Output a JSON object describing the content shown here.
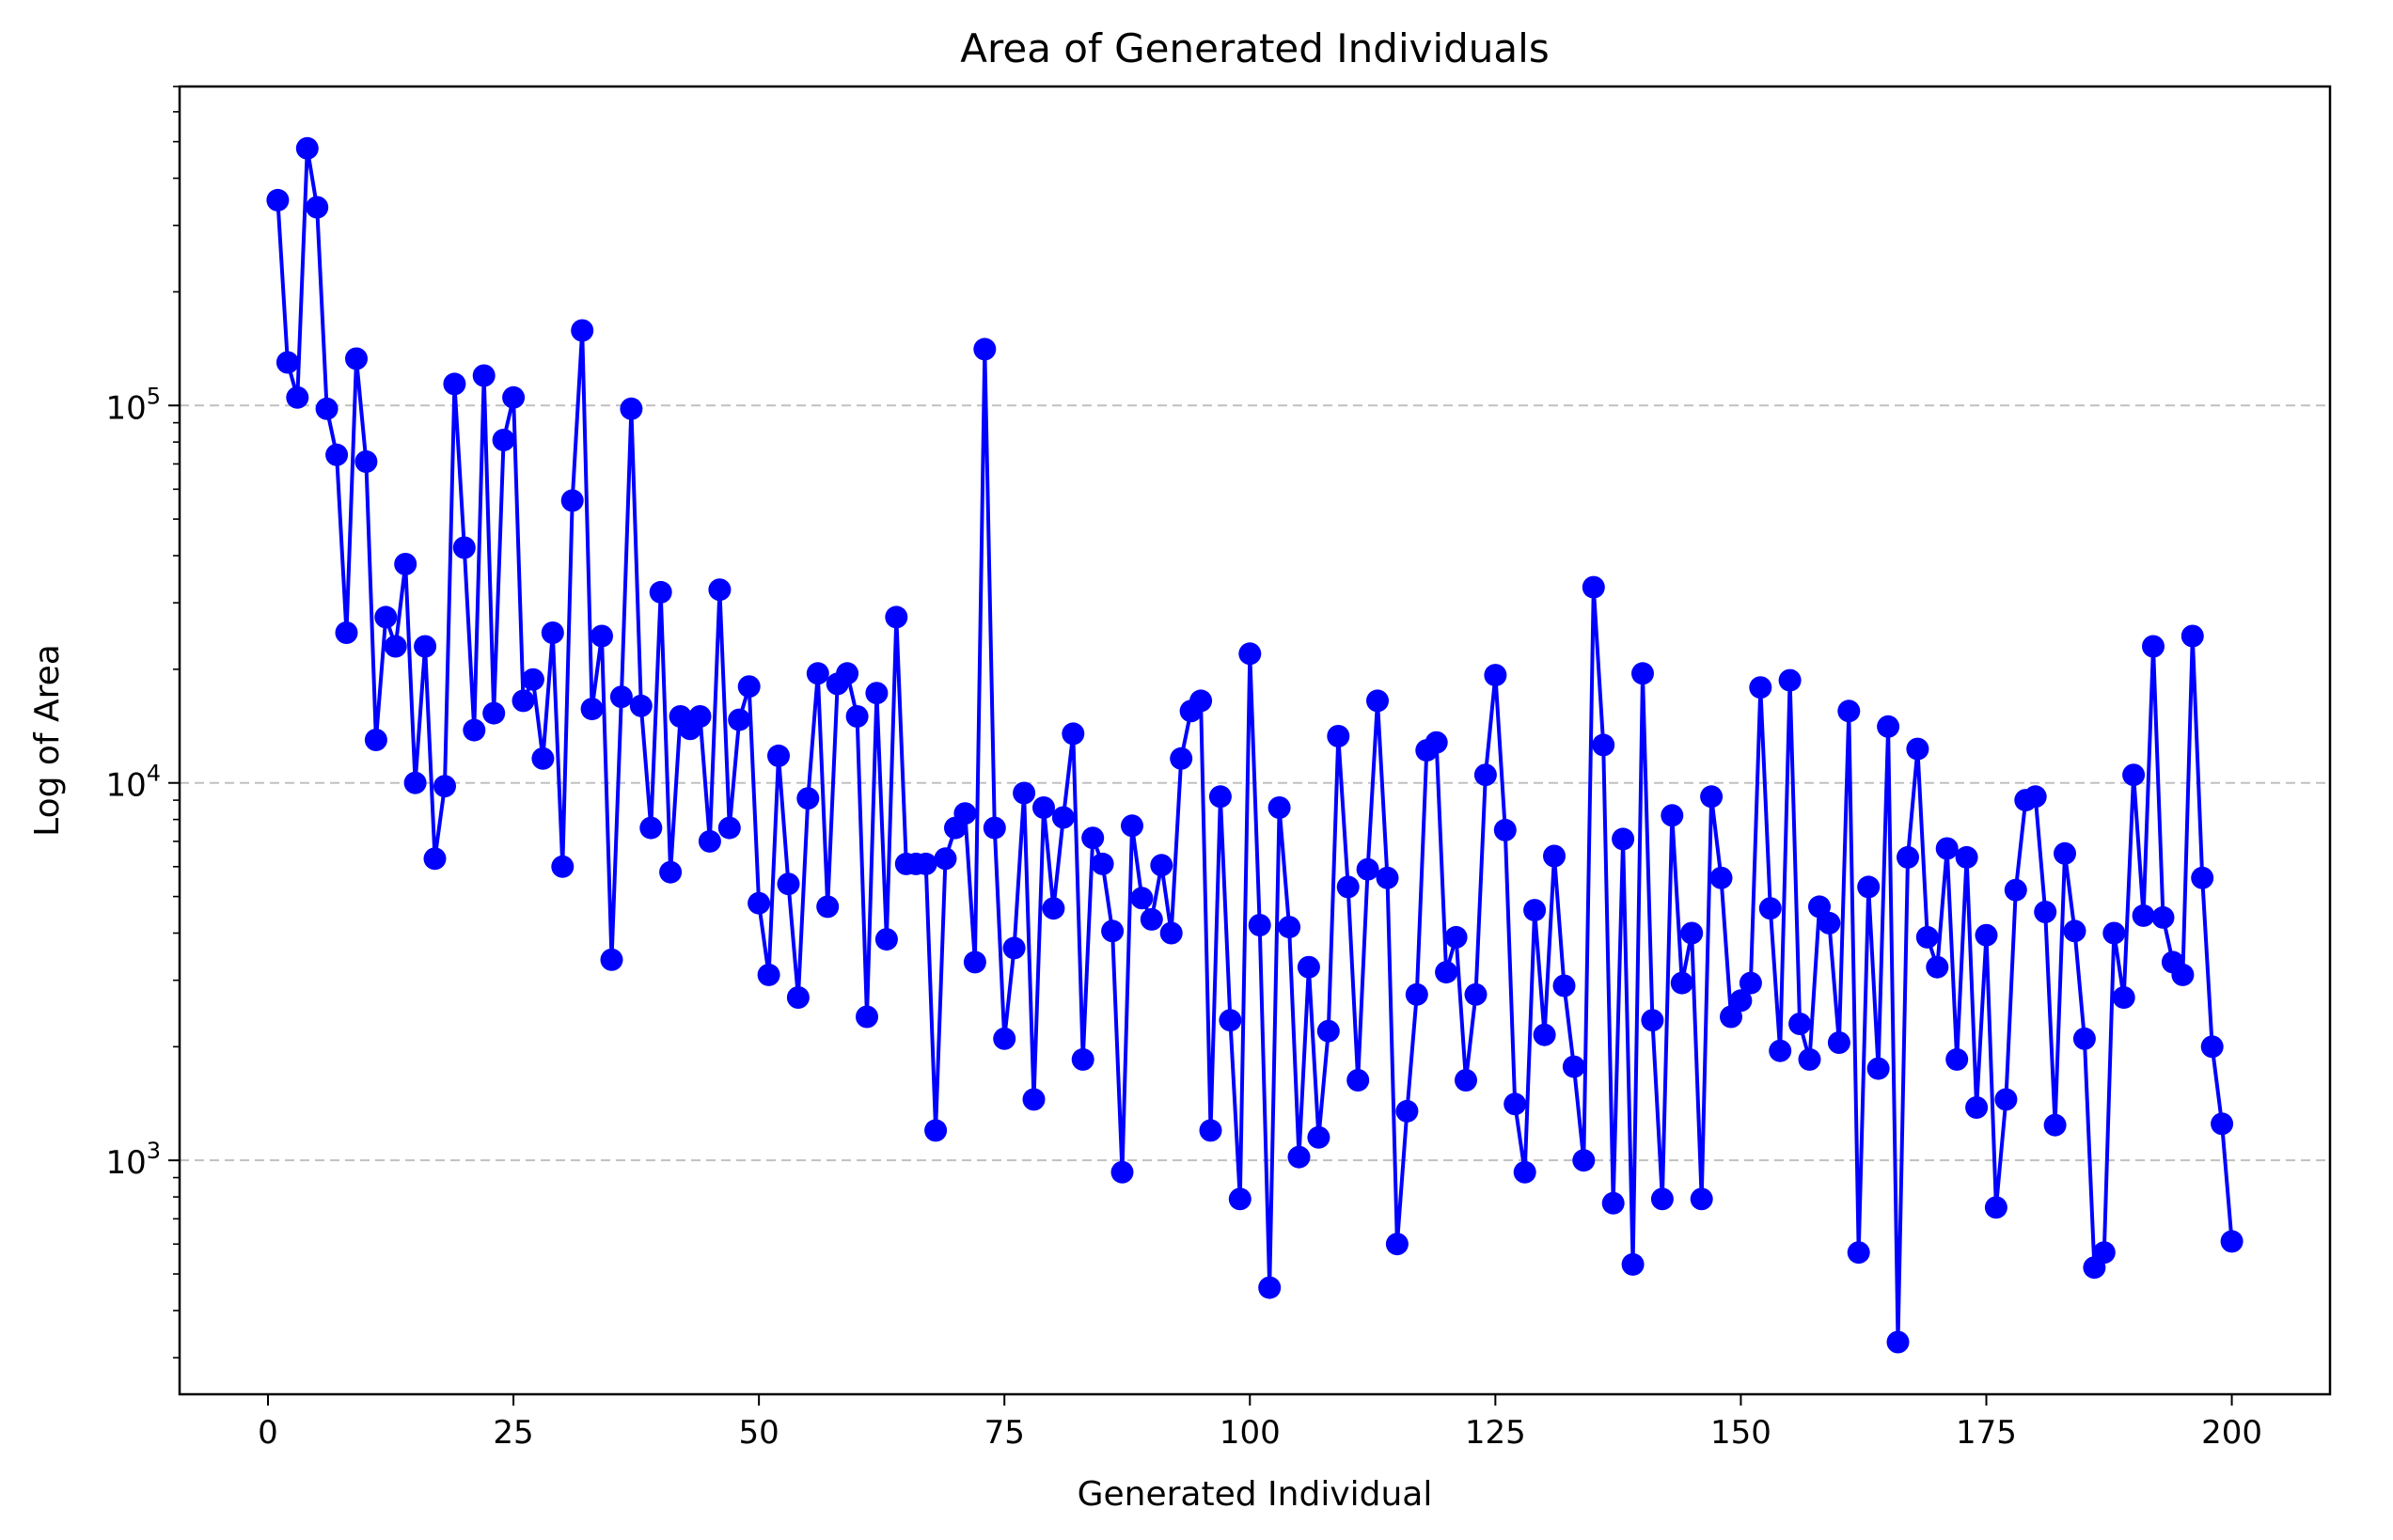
{
  "chart_data": {
    "type": "line",
    "title": "Area of Generated Individuals",
    "xlabel": "Generated Individual",
    "ylabel": "Log of Area",
    "yscale": "log",
    "grid": "y-major-dashed",
    "legend": "none",
    "color": "#0000ff",
    "marker": "circle",
    "xlim": [
      -9,
      210
    ],
    "ylim": [
      240,
      700000
    ],
    "xticks": [
      0,
      25,
      50,
      75,
      100,
      125,
      150,
      175,
      200
    ],
    "yticks": [
      {
        "value": 1000,
        "base": "10",
        "exp": "3"
      },
      {
        "value": 10000,
        "base": "10",
        "exp": "4"
      },
      {
        "value": 100000,
        "base": "10",
        "exp": "5"
      }
    ],
    "x_start": 1,
    "values": [
      350000,
      130000,
      105000,
      480000,
      335000,
      98000,
      74000,
      25000,
      133000,
      71000,
      13000,
      27500,
      23000,
      38000,
      10000,
      23000,
      6300,
      9800,
      114000,
      42000,
      13800,
      120000,
      15300,
      81000,
      105000,
      16500,
      18800,
      11600,
      25000,
      6000,
      56000,
      158000,
      15700,
      24500,
      3400,
      16900,
      98000,
      16000,
      7600,
      32000,
      5800,
      15000,
      13900,
      15000,
      7000,
      32500,
      7600,
      14700,
      18000,
      4800,
      3100,
      11800,
      5400,
      2700,
      9100,
      19500,
      4700,
      18300,
      19500,
      15000,
      2400,
      17300,
      3850,
      27500,
      6100,
      6100,
      6100,
      1200,
      6300,
      7600,
      8300,
      3350,
      141000,
      7600,
      2100,
      3650,
      9400,
      1450,
      8600,
      4650,
      8100,
      13500,
      1850,
      7150,
      6100,
      4050,
      930,
      7700,
      4950,
      4350,
      6050,
      4000,
      11600,
      15500,
      16500,
      1200,
      9200,
      2350,
      790,
      22000,
      4200,
      460,
      8600,
      4150,
      1020,
      3250,
      1150,
      2200,
      13300,
      5300,
      1630,
      5900,
      16500,
      5600,
      600,
      1350,
      2750,
      12200,
      12800,
      3150,
      3900,
      1630,
      2750,
      10500,
      19300,
      7500,
      1410,
      930,
      4600,
      2150,
      6400,
      2900,
      1770,
      1000,
      33000,
      12600,
      770,
      7100,
      530,
      19500,
      2350,
      790,
      8200,
      2950,
      4000,
      790,
      9200,
      5600,
      2400,
      2650,
      2950,
      17900,
      4650,
      1950,
      18700,
      2300,
      1850,
      4700,
      4250,
      2050,
      15500,
      570,
      5300,
      1750,
      14100,
      330,
      6350,
      12300,
      3900,
      3250,
      6700,
      1850,
      6350,
      1380,
      3950,
      750,
      1450,
      5200,
      9000,
      9200,
      4550,
      1240,
      6500,
      4050,
      2100,
      520,
      570,
      4000,
      2700,
      10500,
      4450,
      23000,
      4400,
      3350,
      3100,
      24500,
      5600,
      2000,
      1250,
      610
    ]
  }
}
